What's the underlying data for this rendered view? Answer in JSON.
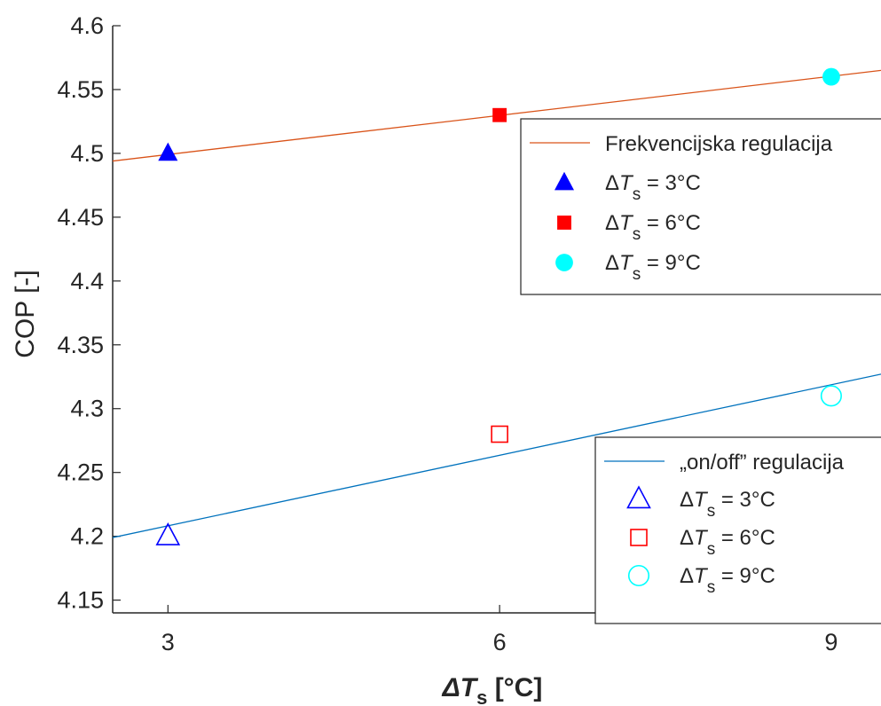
{
  "chart_data": {
    "type": "scatter",
    "xlabel": "ΔT",
    "xlabel_subscript": "s",
    "xlabel_unit": " [°C]",
    "ylabel": "COP [-]",
    "xticks": [
      3,
      6,
      9
    ],
    "yticks": [
      4.15,
      4.2,
      4.25,
      4.3,
      4.35,
      4.4,
      4.45,
      4.5,
      4.55,
      4.6
    ],
    "xlim": [
      2.5,
      9.45
    ],
    "ylim": [
      4.14,
      4.6
    ],
    "grid": false,
    "groups": [
      {
        "id": "frekvencijska",
        "legend_title": "Frekvencijska regulacija",
        "legend_position": "top-right",
        "fill": "filled",
        "line_color": "#d95319",
        "fit_line": [
          [
            2.5,
            4.494
          ],
          [
            9.45,
            4.565
          ]
        ],
        "points": [
          {
            "x": 3,
            "y": 4.5,
            "marker": "triangle",
            "color": "#0000ff",
            "label_prefix": "ΔT",
            "label_sub": "s",
            "label_suffix": " = 3°C"
          },
          {
            "x": 6,
            "y": 4.53,
            "marker": "square",
            "color": "#ff0000",
            "label_prefix": "ΔT",
            "label_sub": "s",
            "label_suffix": " = 6°C"
          },
          {
            "x": 9,
            "y": 4.56,
            "marker": "circle",
            "color": "#00ffff",
            "label_prefix": "ΔT",
            "label_sub": "s",
            "label_suffix": " = 9°C"
          }
        ]
      },
      {
        "id": "onoff",
        "legend_title": "„on/off” regulacija",
        "legend_position": "bottom-right",
        "fill": "open",
        "line_color": "#0072bd",
        "fit_line": [
          [
            2.5,
            4.199
          ],
          [
            9.45,
            4.327
          ]
        ],
        "points": [
          {
            "x": 3,
            "y": 4.2,
            "marker": "triangle",
            "color": "#0000ff",
            "label_prefix": "ΔT",
            "label_sub": "s",
            "label_suffix": " = 3°C"
          },
          {
            "x": 6,
            "y": 4.28,
            "marker": "square",
            "color": "#ff0000",
            "label_prefix": "ΔT",
            "label_sub": "s",
            "label_suffix": " = 6°C"
          },
          {
            "x": 9,
            "y": 4.31,
            "marker": "circle",
            "color": "#00ffff",
            "label_prefix": "ΔT",
            "label_sub": "s",
            "label_suffix": " = 9°C"
          }
        ]
      }
    ]
  }
}
